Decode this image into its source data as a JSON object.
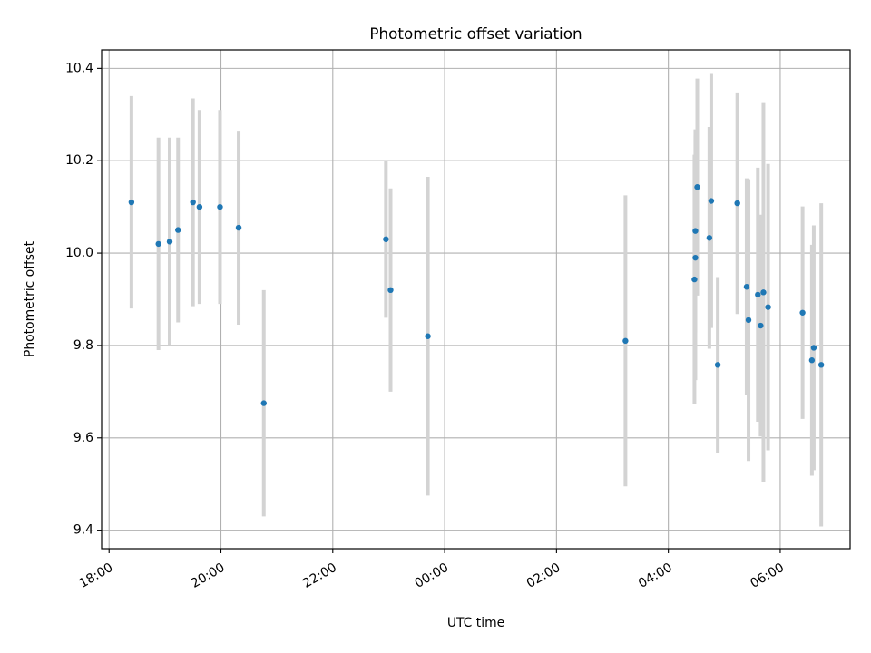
{
  "chart_data": {
    "type": "scatter",
    "title": "Photometric offset variation",
    "xlabel": "UTC time",
    "ylabel": "Photometric offset",
    "x_unit": "UTC time (HH:MM), times after 24:00 fall on the following day",
    "xlim": [
      "17:52",
      "07:15"
    ],
    "ylim": [
      9.36,
      10.44
    ],
    "x_ticks": [
      "18:00",
      "20:00",
      "22:00",
      "00:00",
      "02:00",
      "04:00",
      "06:00"
    ],
    "y_ticks": [
      "9.4",
      "9.6",
      "9.8",
      "10.0",
      "10.2",
      "10.4"
    ],
    "grid": true,
    "legend": "none",
    "marker_color": "#1f77b4",
    "errorbar_color": "#d3d3d3",
    "points": [
      {
        "t": "18:24",
        "y": 10.11,
        "err": 0.23
      },
      {
        "t": "18:53",
        "y": 10.02,
        "err": 0.23
      },
      {
        "t": "19:05",
        "y": 10.025,
        "err": 0.225
      },
      {
        "t": "19:14",
        "y": 10.05,
        "err": 0.2
      },
      {
        "t": "19:30",
        "y": 10.11,
        "err": 0.225
      },
      {
        "t": "19:37",
        "y": 10.1,
        "err": 0.21
      },
      {
        "t": "19:59",
        "y": 10.1,
        "err": 0.21
      },
      {
        "t": "20:19",
        "y": 10.055,
        "err": 0.21
      },
      {
        "t": "20:46",
        "y": 9.675,
        "err": 0.245
      },
      {
        "t": "22:57",
        "y": 10.03,
        "err": 0.17
      },
      {
        "t": "23:02",
        "y": 9.92,
        "err": 0.22
      },
      {
        "t": "23:42",
        "y": 9.82,
        "err": 0.345
      },
      {
        "t": "03:14",
        "y": 9.81,
        "err": 0.315
      },
      {
        "t": "04:28",
        "y": 9.943,
        "err": 0.27
      },
      {
        "t": "04:29",
        "y": 9.99,
        "err": 0.265
      },
      {
        "t": "04:29",
        "y": 10.048,
        "err": 0.22
      },
      {
        "t": "04:31",
        "y": 10.143,
        "err": 0.235
      },
      {
        "t": "04:44",
        "y": 10.033,
        "err": 0.24
      },
      {
        "t": "04:46",
        "y": 10.113,
        "err": 0.275
      },
      {
        "t": "04:53",
        "y": 9.758,
        "err": 0.19
      },
      {
        "t": "05:14",
        "y": 10.108,
        "err": 0.24
      },
      {
        "t": "05:24",
        "y": 9.927,
        "err": 0.235
      },
      {
        "t": "05:26",
        "y": 9.855,
        "err": 0.305
      },
      {
        "t": "05:36",
        "y": 9.91,
        "err": 0.275
      },
      {
        "t": "05:39",
        "y": 9.843,
        "err": 0.24
      },
      {
        "t": "05:42",
        "y": 9.915,
        "err": 0.41
      },
      {
        "t": "05:47",
        "y": 9.883,
        "err": 0.31
      },
      {
        "t": "06:24",
        "y": 9.871,
        "err": 0.23
      },
      {
        "t": "06:34",
        "y": 9.768,
        "err": 0.25
      },
      {
        "t": "06:36",
        "y": 9.795,
        "err": 0.265
      },
      {
        "t": "06:44",
        "y": 9.758,
        "err": 0.35
      }
    ]
  }
}
